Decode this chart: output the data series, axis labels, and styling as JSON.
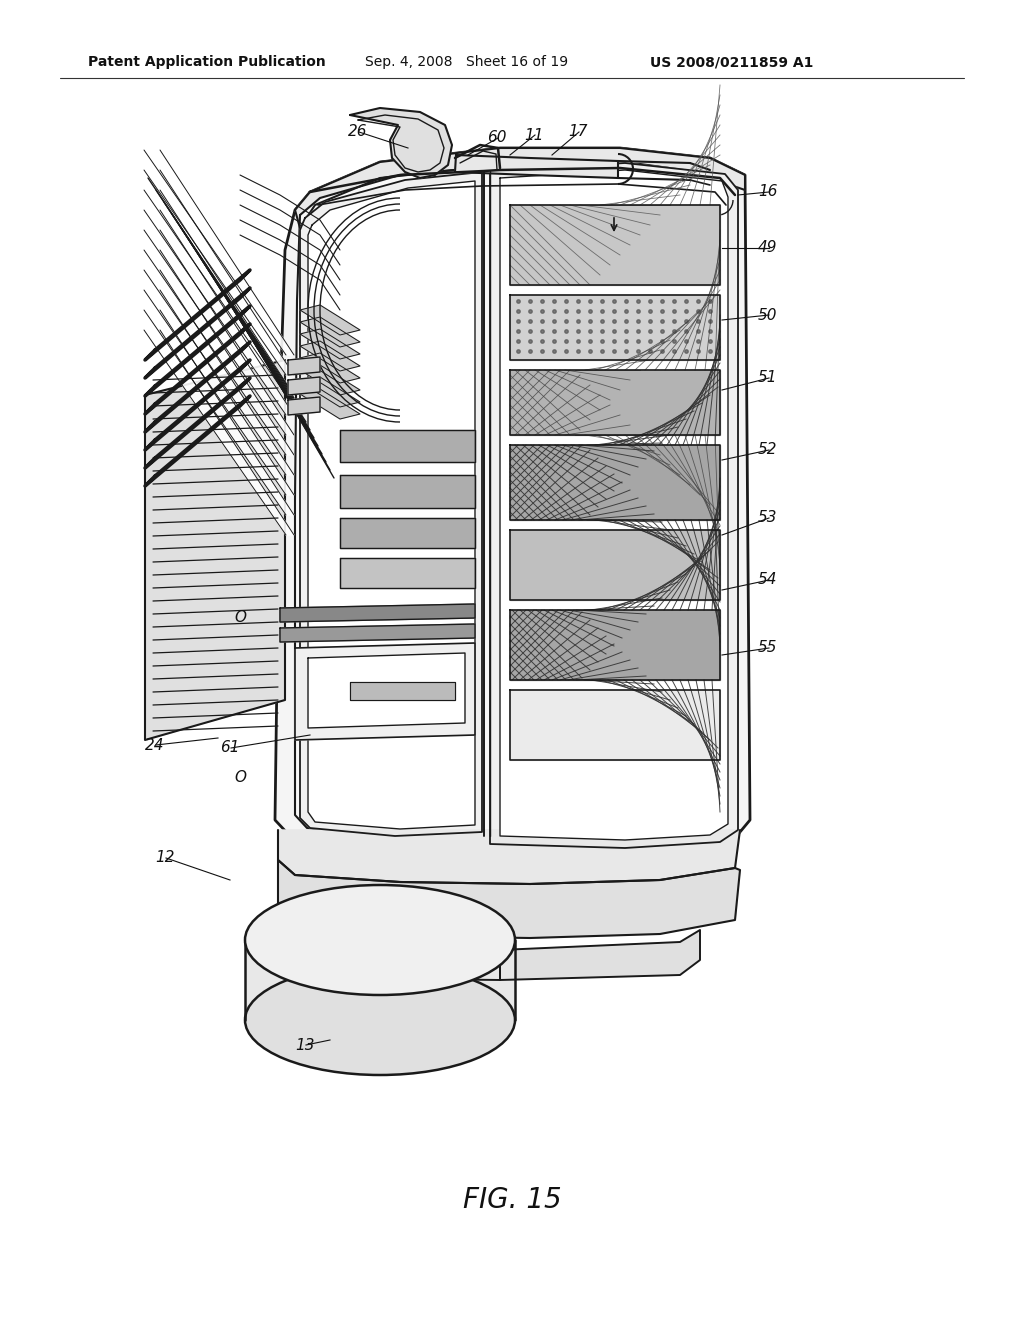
{
  "background_color": "#ffffff",
  "header_left": "Patent Application Publication",
  "header_mid_date": "Sep. 4, 2008",
  "header_mid_sheet": "Sheet 16 of 19",
  "header_right": "US 2008/0211859 A1",
  "figure_label": "FIG. 15",
  "line_color": "#1a1a1a",
  "label_fontsize": 11,
  "header_fontsize": 10
}
